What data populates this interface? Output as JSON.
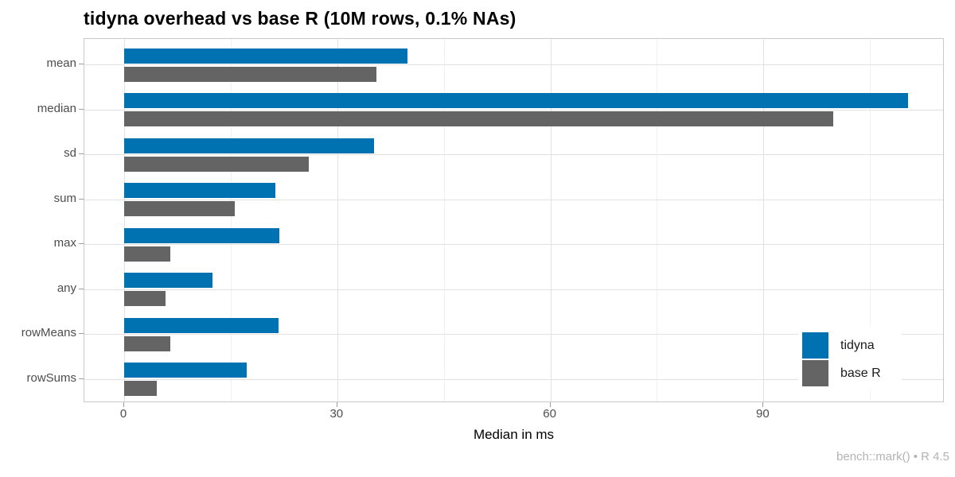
{
  "chart_data": {
    "type": "bar",
    "orientation": "horizontal",
    "title": "tidyna overhead vs base R (10M rows, 0.1% NAs)",
    "xlabel": "Median in ms",
    "ylabel": "",
    "caption": "bench::mark() • R 4.5",
    "units": "ms",
    "categories": [
      "mean",
      "median",
      "sd",
      "sum",
      "max",
      "any",
      "rowMeans",
      "rowSums"
    ],
    "series": [
      {
        "name": "tidyna",
        "color": "#0072B2",
        "values": [
          39.9,
          110.3,
          35.2,
          21.3,
          21.9,
          12.4,
          21.7,
          17.3
        ]
      },
      {
        "name": "base R",
        "color": "#646464",
        "values": [
          35.5,
          99.8,
          26.0,
          15.6,
          6.5,
          5.8,
          6.5,
          4.6
        ]
      }
    ],
    "x_ticks": [
      0,
      30,
      60,
      90
    ],
    "x_minor_ticks": [
      15,
      45,
      75,
      105
    ],
    "xlim": [
      -5.6,
      115.5
    ],
    "grid": true,
    "legend": {
      "position": "inside-right",
      "items": [
        "tidyna",
        "base R"
      ]
    }
  },
  "colors": {
    "bar_blue": "#0072B2",
    "bar_gray": "#646464",
    "panel_border": "#c9c9c9",
    "grid_major": "#e2e2e2",
    "grid_minor": "#f1f1f1",
    "tick": "#9c9c9c",
    "axis_text": "#4d4d4d",
    "title_text": "#000000",
    "caption_text": "#b3b3b3"
  }
}
